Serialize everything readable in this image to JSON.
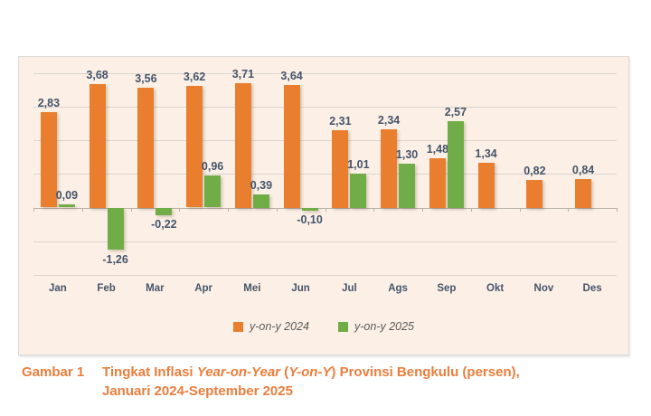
{
  "theme": {
    "panel_bg": "#fcf0e6",
    "panel_border": "#dedad5",
    "gridline_color": "#d9d4cd",
    "axis_color": "#b8b3ac",
    "data_label_color": "#44546a",
    "orange": "#e87e2e",
    "green": "#70ad47",
    "legend_text_color": "#595959",
    "caption_color": "#eb7d3c"
  },
  "chart_data": {
    "type": "bar",
    "categories": [
      "Jan",
      "Feb",
      "Mar",
      "Apr",
      "Mei",
      "Jun",
      "Jul",
      "Ags",
      "Sep",
      "Okt",
      "Nov",
      "Des"
    ],
    "series": [
      {
        "name": "y-on-y 2024",
        "color": "#e87e2e",
        "values": [
          2.83,
          3.68,
          3.56,
          3.62,
          3.71,
          3.64,
          2.31,
          2.34,
          1.48,
          1.34,
          0.82,
          0.84
        ],
        "labels": [
          "2,83",
          "3,68",
          "3,56",
          "3,62",
          "3,71",
          "3,64",
          "2,31",
          "2,34",
          "1,48",
          "1,34",
          "0,82",
          "0,84"
        ]
      },
      {
        "name": "y-on-y 2025",
        "color": "#70ad47",
        "values": [
          0.09,
          -1.26,
          -0.22,
          0.96,
          0.39,
          -0.1,
          1.01,
          1.3,
          2.57,
          null,
          null,
          null
        ],
        "labels": [
          "0,09",
          "-1,26",
          "-0,22",
          "0,96",
          "0,39",
          "-0,10",
          "1,01",
          "1,30",
          "2,57",
          null,
          null,
          null
        ]
      }
    ],
    "title": "",
    "xlabel": "",
    "ylabel": "",
    "ylim": [
      -2.0,
      4.26
    ],
    "gridlines": [
      4,
      3,
      2,
      1,
      0,
      -1,
      -2
    ],
    "grid": true,
    "legend_position": "bottom",
    "legend": [
      {
        "label": "y-on-y 2024",
        "color": "#e87e2e"
      },
      {
        "label": "y-on-y 2025",
        "color": "#70ad47"
      }
    ]
  },
  "caption": {
    "figure_label": "Gambar 1",
    "line1_segments": [
      {
        "text": "Tingkat Inflasi ",
        "italic": false
      },
      {
        "text": "Year-on-Year",
        "italic": true
      },
      {
        "text": " (",
        "italic": false
      },
      {
        "text": "Y-on-Y",
        "italic": true
      },
      {
        "text": ") Provinsi Bengkulu (persen),",
        "italic": false
      }
    ],
    "line2": "Januari 2024-September 2025"
  }
}
